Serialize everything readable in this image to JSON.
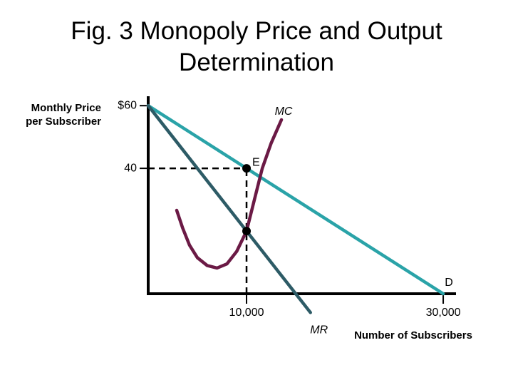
{
  "chart_data": {
    "type": "line",
    "title": "Fig. 3 Monopoly Price and Output Determination",
    "x_label": "Number of Subscribers",
    "y_label": "Monthly Price per Subscriber",
    "xlim": [
      0,
      31300
    ],
    "ylim": [
      0,
      63
    ],
    "xticks": [
      {
        "value": 10000,
        "label": "10,000"
      },
      {
        "value": 30000,
        "label": "30,000"
      }
    ],
    "yticks": [
      {
        "value": 60,
        "label": "$60"
      },
      40
    ],
    "series": [
      {
        "name": "D",
        "color": "#2aa3a8",
        "x": [
          0,
          30000
        ],
        "values": [
          60,
          0
        ]
      },
      {
        "name": "MR",
        "color": "#2d5b66",
        "x": [
          0,
          16500
        ],
        "values": [
          60,
          -6
        ]
      },
      {
        "name": "MC",
        "color": "#6b1a45",
        "x": [
          2900,
          3500,
          4200,
          5000,
          6000,
          7000,
          8000,
          9000,
          10000,
          10800,
          11600,
          12500,
          13550
        ],
        "values": [
          26.6,
          21,
          15.5,
          11.5,
          9,
          8.2,
          9.5,
          13.5,
          20,
          30,
          40,
          48,
          55.5
        ]
      }
    ],
    "guides": [
      {
        "x": [
          0,
          10000
        ],
        "y": [
          40,
          40
        ]
      },
      {
        "x": [
          10000,
          10000
        ],
        "y": [
          0,
          40
        ]
      }
    ],
    "points": [
      {
        "label": "E",
        "x": 10000,
        "y": 40
      },
      {
        "x": 10000,
        "y": 20
      }
    ]
  }
}
